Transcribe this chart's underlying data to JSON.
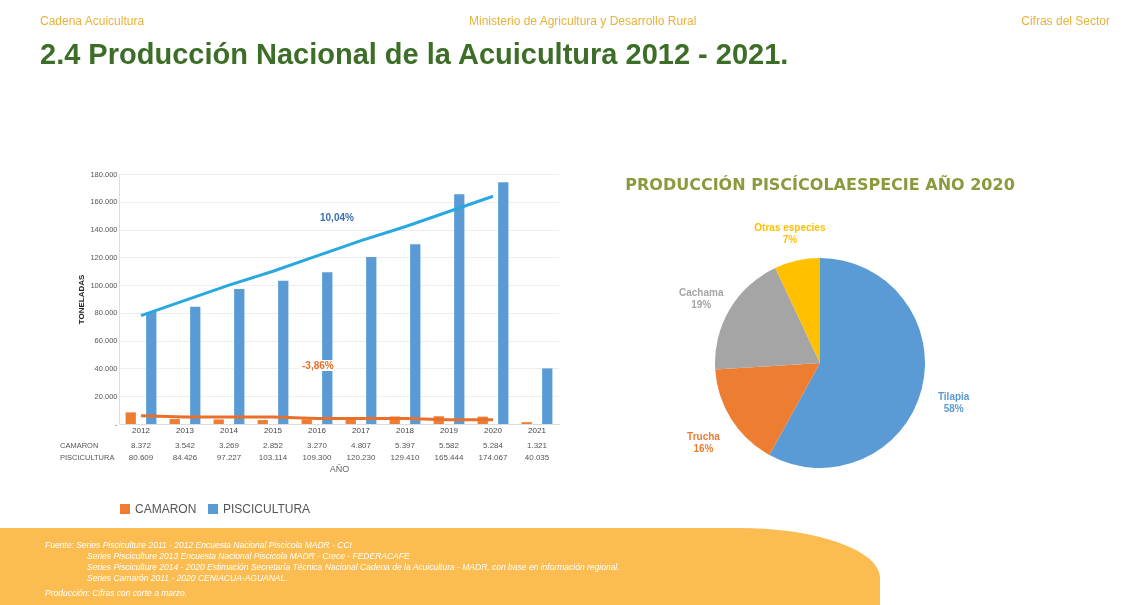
{
  "chart_data": [
    {
      "type": "bar",
      "title": "2.4 Producción Nacional de la Acuicultura 2012 - 2021.",
      "categories": [
        "2012",
        "2013",
        "2014",
        "2015",
        "2016",
        "2017",
        "2018",
        "2019",
        "2020",
        "2021"
      ],
      "xlabel": "AÑO",
      "ylabel": "TONELADAS",
      "series": [
        {
          "name": "CAMARON",
          "color": "#ed7d31",
          "values": [
            8372,
            3542,
            3269,
            2852,
            3270,
            4807,
            5397,
            5582,
            5284,
            1321
          ],
          "value_labels": [
            "8.372",
            "3.542",
            "3.269",
            "2.852",
            "3.270",
            "4.807",
            "5.397",
            "5.582",
            "5.284",
            "1.321"
          ]
        },
        {
          "name": "PISCICULTURA",
          "color": "#5b9bd5",
          "values": [
            80609,
            84426,
            97227,
            103114,
            109300,
            120230,
            129410,
            165444,
            174067,
            40035
          ],
          "value_labels": [
            "80.609",
            "84.426",
            "97.227",
            "103.114",
            "109.300",
            "120.230",
            "129.410",
            "165.444",
            "174.067",
            "40.035"
          ]
        },
        {
          "type": "line",
          "color": "#29a8e0",
          "values": [
            78000,
            89000,
            100000,
            110000,
            121000,
            132000,
            142000,
            153000,
            164000,
            null
          ]
        },
        {
          "type": "line",
          "color": "#e8702a",
          "values": [
            6000,
            5000,
            5000,
            5000,
            4000,
            4000,
            4000,
            3000,
            3000,
            null
          ]
        }
      ],
      "ylim": [
        0,
        180000
      ],
      "yticks": [
        {
          "value": 0,
          "label": "-"
        },
        {
          "value": 20000,
          "label": "20.000"
        },
        {
          "value": 40000,
          "label": "40.000"
        },
        {
          "value": 60000,
          "label": "60.000"
        },
        {
          "value": 80000,
          "label": "80.000"
        },
        {
          "value": 100000,
          "label": "100.000"
        },
        {
          "value": 120000,
          "label": "120.000"
        },
        {
          "value": 140000,
          "label": "140.000"
        },
        {
          "value": 160000,
          "label": "160.000"
        },
        {
          "value": 180000,
          "label": "180.000"
        }
      ],
      "grid": "y",
      "legend": "bottom",
      "annotations": [
        "Cadena Acuicultura",
        "Ministerio de Agricultura y Desarrollo Rural",
        "Cifras del Sector",
        "10,04%",
        "-3,86%",
        "Fuente: Series Pisciculture 2011 - 2012 Encuesta Nacional Piscicola MADR - CCI",
        "Series Pisciculture 2013 Encuesta Nacional Piscicola MADR - Crece - FEDERACAFE",
        "Series Pisciculture 2014 - 2020 Estimación Secretaría Técnica Nacional Cadena de la Acuicultura - MADR, con base en información regional.",
        "Series Camarón  2011 - 2020 CENIACUA-AGUANAL.",
        "Producción: Cifras con corte a marzo."
      ]
    },
    {
      "type": "pie",
      "title": "PRODUCCIÓN PISCÍCOLAESPECIE AÑO 2020",
      "categories": [
        "Tilapia",
        "Trucha",
        "Cachama",
        "Otras especies"
      ],
      "values": [
        58,
        16,
        19,
        7
      ],
      "value_labels": [
        "58%",
        "16%",
        "19%",
        "7%"
      ],
      "colors": [
        "#5b9bd5",
        "#ed7d31",
        "#a5a5a5",
        "#ffc000"
      ]
    }
  ]
}
